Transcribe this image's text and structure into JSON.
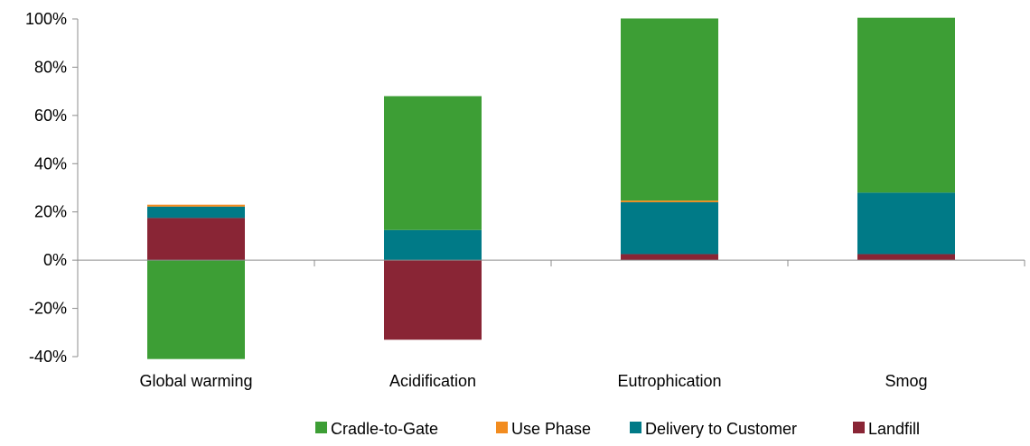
{
  "chart_data": {
    "type": "bar",
    "stacked": true,
    "categories": [
      "Global warming",
      "Acidification",
      "Eutrophication",
      "Smog"
    ],
    "series": [
      {
        "name": "Cradle-to-Gate",
        "color": "#3d9e35",
        "values": [
          -41,
          55.5,
          75.5,
          72.5
        ]
      },
      {
        "name": "Use Phase",
        "color": "#f28c1f",
        "values": [
          0.8,
          0,
          0.7,
          0
        ]
      },
      {
        "name": "Delivery to Customer",
        "color": "#007a87",
        "values": [
          4.7,
          12.5,
          21.5,
          25.5
        ]
      },
      {
        "name": "Landfill",
        "color": "#892535",
        "values": [
          17.5,
          -33,
          2.5,
          2.5
        ]
      }
    ],
    "stack_order_positive": [
      "Landfill",
      "Delivery to Customer",
      "Use Phase",
      "Cradle-to-Gate"
    ],
    "stack_order_negative": [
      "Cradle-to-Gate",
      "Landfill"
    ],
    "ylim": [
      -40,
      100
    ],
    "yticks": [
      -40,
      -20,
      0,
      20,
      40,
      60,
      80,
      100
    ],
    "ytick_labels": [
      "-40%",
      "-20%",
      "0%",
      "20%",
      "40%",
      "60%",
      "80%",
      "100%"
    ],
    "title": "",
    "xlabel": "",
    "ylabel": "",
    "legend_position": "bottom",
    "grid": false
  }
}
